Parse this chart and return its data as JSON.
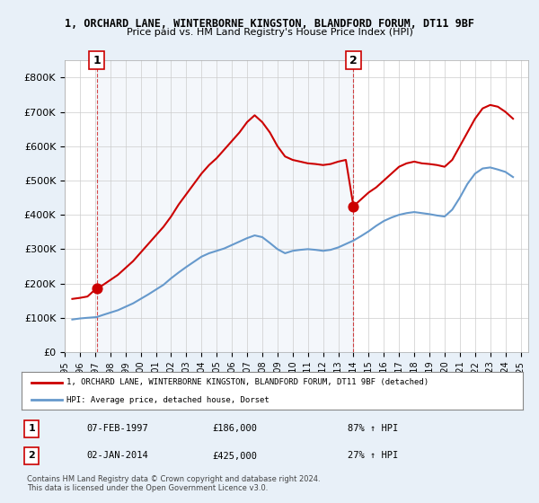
{
  "title_line1": "1, ORCHARD LANE, WINTERBORNE KINGSTON, BLANDFORD FORUM, DT11 9BF",
  "title_line2": "Price paid vs. HM Land Registry's House Price Index (HPI)",
  "ylabel": "",
  "xlabel": "",
  "ylim": [
    0,
    850000
  ],
  "xlim_start": 1995.0,
  "xlim_end": 2025.5,
  "yticks": [
    0,
    100000,
    200000,
    300000,
    400000,
    500000,
    600000,
    700000,
    800000
  ],
  "ytick_labels": [
    "£0",
    "£100K",
    "£200K",
    "£300K",
    "£400K",
    "£500K",
    "£600K",
    "£700K",
    "£800K"
  ],
  "xtick_years": [
    1995,
    1996,
    1997,
    1998,
    1999,
    2000,
    2001,
    2002,
    2003,
    2004,
    2005,
    2006,
    2007,
    2008,
    2009,
    2010,
    2011,
    2012,
    2013,
    2014,
    2015,
    2016,
    2017,
    2018,
    2019,
    2020,
    2021,
    2022,
    2023,
    2024,
    2025
  ],
  "property_color": "#cc0000",
  "hpi_color": "#6699cc",
  "annotation_box_color": "#cc0000",
  "background_color": "#e8f0f8",
  "plot_bg_color": "#ffffff",
  "sale1_x": 1997.1,
  "sale1_y": 186000,
  "sale1_label": "1",
  "sale2_x": 2014.0,
  "sale2_y": 425000,
  "sale2_label": "2",
  "legend_property": "1, ORCHARD LANE, WINTERBORNE KINGSTON, BLANDFORD FORUM, DT11 9BF (detached)",
  "legend_hpi": "HPI: Average price, detached house, Dorset",
  "table_row1": [
    "1",
    "07-FEB-1997",
    "£186,000",
    "87% ↑ HPI"
  ],
  "table_row2": [
    "2",
    "02-JAN-2014",
    "£425,000",
    "27% ↑ HPI"
  ],
  "footnote1": "Contains HM Land Registry data © Crown copyright and database right 2024.",
  "footnote2": "This data is licensed under the Open Government Licence v3.0.",
  "property_data_x": [
    1995.5,
    1996.0,
    1996.5,
    1997.1,
    1997.5,
    1998.0,
    1998.5,
    1999.0,
    1999.5,
    2000.0,
    2000.5,
    2001.0,
    2001.5,
    2002.0,
    2002.5,
    2003.0,
    2003.5,
    2004.0,
    2004.5,
    2005.0,
    2005.5,
    2006.0,
    2006.5,
    2007.0,
    2007.5,
    2008.0,
    2008.5,
    2009.0,
    2009.5,
    2010.0,
    2010.5,
    2011.0,
    2011.5,
    2012.0,
    2012.5,
    2013.0,
    2013.5,
    2014.0,
    2014.5,
    2015.0,
    2015.5,
    2016.0,
    2016.5,
    2017.0,
    2017.5,
    2018.0,
    2018.5,
    2019.0,
    2019.5,
    2020.0,
    2020.5,
    2021.0,
    2021.5,
    2022.0,
    2022.5,
    2023.0,
    2023.5,
    2024.0,
    2024.5
  ],
  "property_data_y": [
    155000,
    158000,
    162000,
    186000,
    195000,
    210000,
    225000,
    245000,
    265000,
    290000,
    315000,
    340000,
    365000,
    395000,
    430000,
    460000,
    490000,
    520000,
    545000,
    565000,
    590000,
    615000,
    640000,
    670000,
    690000,
    670000,
    640000,
    600000,
    570000,
    560000,
    555000,
    550000,
    548000,
    545000,
    548000,
    555000,
    560000,
    425000,
    445000,
    465000,
    480000,
    500000,
    520000,
    540000,
    550000,
    555000,
    550000,
    548000,
    545000,
    540000,
    560000,
    600000,
    640000,
    680000,
    710000,
    720000,
    715000,
    700000,
    680000
  ],
  "hpi_data_x": [
    1995.5,
    1996.0,
    1996.5,
    1997.1,
    1997.5,
    1998.0,
    1998.5,
    1999.0,
    1999.5,
    2000.0,
    2000.5,
    2001.0,
    2001.5,
    2002.0,
    2002.5,
    2003.0,
    2003.5,
    2004.0,
    2004.5,
    2005.0,
    2005.5,
    2006.0,
    2006.5,
    2007.0,
    2007.5,
    2008.0,
    2008.5,
    2009.0,
    2009.5,
    2010.0,
    2010.5,
    2011.0,
    2011.5,
    2012.0,
    2012.5,
    2013.0,
    2013.5,
    2014.0,
    2014.5,
    2015.0,
    2015.5,
    2016.0,
    2016.5,
    2017.0,
    2017.5,
    2018.0,
    2018.5,
    2019.0,
    2019.5,
    2020.0,
    2020.5,
    2021.0,
    2021.5,
    2022.0,
    2022.5,
    2023.0,
    2023.5,
    2024.0,
    2024.5
  ],
  "hpi_data_y": [
    95000,
    98000,
    100000,
    102000,
    108000,
    115000,
    122000,
    132000,
    142000,
    155000,
    168000,
    182000,
    196000,
    215000,
    232000,
    248000,
    263000,
    278000,
    288000,
    295000,
    302000,
    312000,
    322000,
    332000,
    340000,
    335000,
    318000,
    300000,
    288000,
    295000,
    298000,
    300000,
    298000,
    295000,
    298000,
    305000,
    315000,
    325000,
    338000,
    352000,
    368000,
    382000,
    392000,
    400000,
    405000,
    408000,
    405000,
    402000,
    398000,
    395000,
    415000,
    450000,
    490000,
    520000,
    535000,
    538000,
    532000,
    525000,
    510000
  ]
}
